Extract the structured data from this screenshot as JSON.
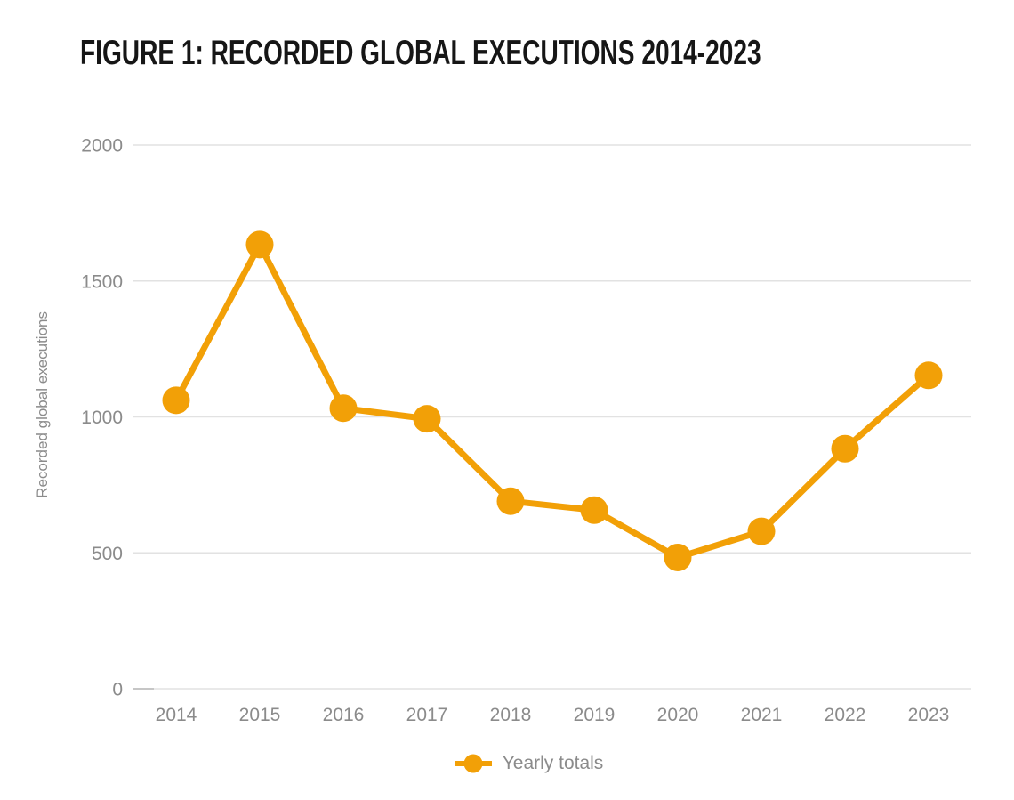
{
  "figure": {
    "title": "FIGURE 1: RECORDED GLOBAL EXECUTIONS 2014-2023"
  },
  "chart_data": {
    "type": "line",
    "title": "FIGURE 1: RECORDED GLOBAL EXECUTIONS 2014-2023",
    "categories": [
      "2014",
      "2015",
      "2016",
      "2017",
      "2018",
      "2019",
      "2020",
      "2021",
      "2022",
      "2023"
    ],
    "series": [
      {
        "name": "Yearly totals",
        "values": [
          1061,
          1634,
          1032,
          993,
          690,
          657,
          483,
          579,
          883,
          1153
        ]
      }
    ],
    "xlabel": "",
    "ylabel": "Recorded global executions",
    "ylim": [
      0,
      2000
    ],
    "yticks": [
      0,
      500,
      1000,
      1500,
      2000
    ],
    "grid": "horizontal",
    "legend_position": "bottom-center",
    "colors": {
      "series": "#F2A007",
      "grid": "#e2e2e2",
      "axis_tick": "#c6c6c6",
      "tick_label": "#8b8b8b",
      "title_text": "#161616"
    }
  }
}
